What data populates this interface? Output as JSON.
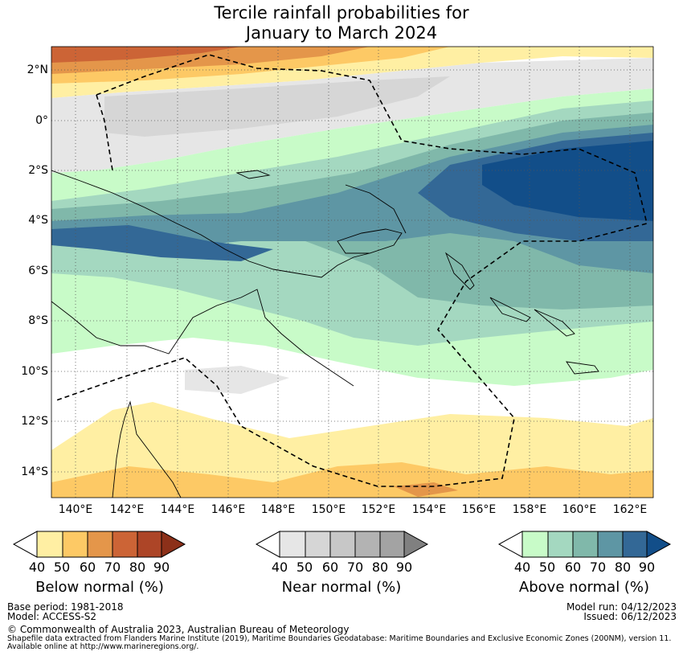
{
  "title_line1": "Tercile rainfall probabilities for",
  "title_line2": "January to March 2024",
  "lat_labels": [
    "2°N",
    "0°",
    "2°S",
    "4°S",
    "6°S",
    "8°S",
    "10°S",
    "12°S",
    "14°S"
  ],
  "lon_labels": [
    "140°E",
    "142°E",
    "144°E",
    "146°E",
    "148°E",
    "150°E",
    "152°E",
    "154°E",
    "156°E",
    "158°E",
    "160°E",
    "162°E"
  ],
  "colors": {
    "below": [
      "#ffefa3",
      "#fdc965",
      "#e4964a",
      "#cc6436",
      "#ad4527",
      "#8c3019"
    ],
    "near": [
      "#e6e6e6",
      "#d6d6d6",
      "#c7c7c7",
      "#b3b3b3",
      "#a3a3a3",
      "#808080"
    ],
    "above": [
      "#c8fbc8",
      "#a4d8c0",
      "#80b8aa",
      "#5e96a4",
      "#336896",
      "#124e89"
    ],
    "white": "#ffffff"
  },
  "legends": {
    "below": {
      "label": "Below normal (%)",
      "ticks": [
        "40",
        "50",
        "60",
        "70",
        "80",
        "90"
      ]
    },
    "near": {
      "label": "Near normal (%)",
      "ticks": [
        "40",
        "50",
        "60",
        "70",
        "80",
        "90"
      ]
    },
    "above": {
      "label": "Above normal (%)",
      "ticks": [
        "40",
        "50",
        "60",
        "70",
        "80",
        "90"
      ]
    }
  },
  "footer": {
    "base_period": "Base period: 1981-2018",
    "model": "Model: ACCESS-S2",
    "model_run": "Model run: 04/12/2023",
    "issued": "Issued: 06/12/2023",
    "copyright": "© Commonwealth of Australia 2023, Australian Bureau of Meteorology",
    "shapefile_line1": "Shapefile data extracted from Flanders Marine Institute (2019), Maritime Boundaries Geodatabase: Maritime Boundaries and Exclusive Economic Zones (200NM), version 11.",
    "shapefile_line2": "Available online at http://www.marineregions.org/."
  }
}
